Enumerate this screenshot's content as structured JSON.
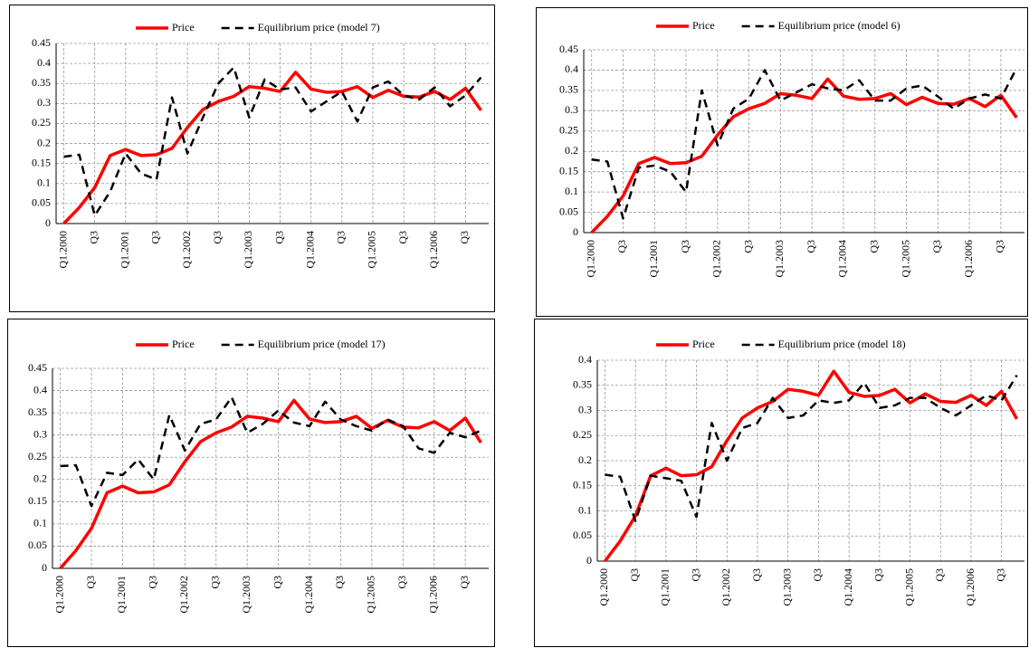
{
  "chart_data": [
    {
      "type": "line",
      "ylim": [
        0,
        0.45
      ],
      "yticks": [
        0,
        0.05,
        0.1,
        0.15,
        0.2,
        0.25,
        0.3,
        0.35,
        0.4,
        0.45
      ],
      "grid": true,
      "legend": "top",
      "categories": [
        "Q1.2000",
        null,
        "Q3",
        null,
        "Q1.2001",
        null,
        "Q3",
        null,
        "Q1.2002",
        null,
        "Q3",
        null,
        "Q1.2003",
        null,
        "Q3",
        null,
        "Q1.2004",
        null,
        "Q3",
        null,
        "Q1.2005",
        null,
        "Q3",
        null,
        "Q1.2006",
        null,
        "Q3",
        null
      ],
      "series": [
        {
          "name": "Price",
          "color": "#ff0000",
          "line_style": "solid",
          "values": [
            0,
            0.04,
            0.09,
            0.17,
            0.185,
            0.17,
            0.172,
            0.188,
            0.24,
            0.285,
            0.305,
            0.318,
            0.342,
            0.338,
            0.33,
            0.378,
            0.336,
            0.328,
            0.33,
            0.342,
            0.315,
            0.333,
            0.318,
            0.316,
            0.33,
            0.31,
            0.338,
            0.283
          ]
        },
        {
          "name": "Equilibrium price (model 7)",
          "color": "#000000",
          "line_style": "dashed",
          "values": [
            0.167,
            0.172,
            0.02,
            0.08,
            0.175,
            0.125,
            0.11,
            0.315,
            0.175,
            0.265,
            0.35,
            0.39,
            0.265,
            0.36,
            0.335,
            0.34,
            0.28,
            0.305,
            0.33,
            0.255,
            0.34,
            0.355,
            0.32,
            0.31,
            0.34,
            0.293,
            0.32,
            0.365
          ]
        }
      ]
    },
    {
      "type": "line",
      "ylim": [
        0,
        0.45
      ],
      "yticks": [
        0,
        0.05,
        0.1,
        0.15,
        0.2,
        0.25,
        0.3,
        0.35,
        0.4,
        0.45
      ],
      "grid": true,
      "legend": "top",
      "categories": [
        "Q1.2000",
        null,
        "Q3",
        null,
        "Q1.2001",
        null,
        "Q3",
        null,
        "Q1.2002",
        null,
        "Q3",
        null,
        "Q1.2003",
        null,
        "Q3",
        null,
        "Q1.2004",
        null,
        "Q3",
        null,
        "Q1.2005",
        null,
        "Q3",
        null,
        "Q1.2006",
        null,
        "Q3",
        null
      ],
      "series": [
        {
          "name": "Price",
          "color": "#ff0000",
          "line_style": "solid",
          "values": [
            0,
            0.04,
            0.09,
            0.17,
            0.185,
            0.17,
            0.172,
            0.188,
            0.24,
            0.285,
            0.305,
            0.318,
            0.342,
            0.338,
            0.33,
            0.378,
            0.336,
            0.328,
            0.33,
            0.342,
            0.315,
            0.333,
            0.318,
            0.316,
            0.33,
            0.31,
            0.338,
            0.283
          ]
        },
        {
          "name": "Equilibrium price (model 6)",
          "color": "#000000",
          "line_style": "dashed",
          "values": [
            0.18,
            0.175,
            0.035,
            0.16,
            0.165,
            0.15,
            0.1,
            0.35,
            0.215,
            0.305,
            0.33,
            0.4,
            0.325,
            0.345,
            0.365,
            0.355,
            0.35,
            0.375,
            0.325,
            0.325,
            0.355,
            0.362,
            0.335,
            0.305,
            0.33,
            0.34,
            0.33,
            0.405
          ]
        }
      ]
    },
    {
      "type": "line",
      "ylim": [
        0,
        0.45
      ],
      "yticks": [
        0,
        0.05,
        0.1,
        0.15,
        0.2,
        0.25,
        0.3,
        0.35,
        0.4,
        0.45
      ],
      "grid": true,
      "legend": "top",
      "categories": [
        "Q1.2000",
        null,
        "Q3",
        null,
        "Q1.2001",
        null,
        "Q3",
        null,
        "Q1.2002",
        null,
        "Q3",
        null,
        "Q1.2003",
        null,
        "Q3",
        null,
        "Q1.2004",
        null,
        "Q3",
        null,
        "Q1.2005",
        null,
        "Q3",
        null,
        "Q1.2006",
        null,
        "Q3",
        null
      ],
      "series": [
        {
          "name": "Price",
          "color": "#ff0000",
          "line_style": "solid",
          "values": [
            0,
            0.04,
            0.09,
            0.17,
            0.185,
            0.17,
            0.172,
            0.188,
            0.24,
            0.285,
            0.305,
            0.318,
            0.342,
            0.338,
            0.33,
            0.378,
            0.336,
            0.328,
            0.33,
            0.342,
            0.315,
            0.333,
            0.318,
            0.316,
            0.33,
            0.31,
            0.338,
            0.283
          ]
        },
        {
          "name": "Equilibrium price (model 17)",
          "color": "#000000",
          "line_style": "dashed",
          "values": [
            0.23,
            0.232,
            0.14,
            0.215,
            0.21,
            0.245,
            0.2,
            0.345,
            0.265,
            0.325,
            0.335,
            0.385,
            0.305,
            0.325,
            0.355,
            0.328,
            0.32,
            0.375,
            0.335,
            0.32,
            0.31,
            0.335,
            0.32,
            0.27,
            0.26,
            0.305,
            0.295,
            0.31
          ]
        }
      ]
    },
    {
      "type": "line",
      "ylim": [
        0,
        0.4
      ],
      "yticks": [
        0,
        0.05,
        0.1,
        0.15,
        0.2,
        0.25,
        0.3,
        0.35,
        0.4
      ],
      "grid": true,
      "legend": "top",
      "categories": [
        "Q1.2000",
        null,
        "Q3",
        null,
        "Q1.2001",
        null,
        "Q3",
        null,
        "Q1.2002",
        null,
        "Q3",
        null,
        "Q1.2003",
        null,
        "Q3",
        null,
        "Q1.2004",
        null,
        "Q3",
        null,
        "Q1.2005",
        null,
        "Q3",
        null,
        "Q1.2006",
        null,
        "Q3",
        null
      ],
      "series": [
        {
          "name": "Price",
          "color": "#ff0000",
          "line_style": "solid",
          "values": [
            0,
            0.04,
            0.09,
            0.17,
            0.185,
            0.17,
            0.172,
            0.188,
            0.24,
            0.285,
            0.305,
            0.318,
            0.342,
            0.338,
            0.33,
            0.378,
            0.336,
            0.328,
            0.33,
            0.342,
            0.315,
            0.333,
            0.318,
            0.316,
            0.33,
            0.31,
            0.338,
            0.283
          ]
        },
        {
          "name": "Equilibrium price (model 18)",
          "color": "#000000",
          "line_style": "dashed",
          "values": [
            0.172,
            0.168,
            0.08,
            0.17,
            0.165,
            0.16,
            0.088,
            0.275,
            0.2,
            0.265,
            0.275,
            0.325,
            0.285,
            0.29,
            0.32,
            0.315,
            0.32,
            0.355,
            0.305,
            0.31,
            0.325,
            0.325,
            0.305,
            0.29,
            0.31,
            0.33,
            0.32,
            0.37
          ]
        }
      ]
    }
  ]
}
